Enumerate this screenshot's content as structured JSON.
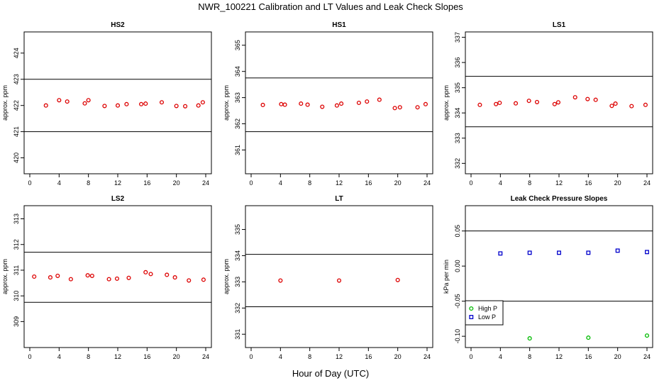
{
  "title": "NWR_100221  Calibration and LT Values and Leak Check Slopes",
  "xlabel": "Hour of Day (UTC)",
  "chart_data": [
    {
      "type": "scatter",
      "title": "HS2",
      "ylabel": "approx. ppm",
      "xlim": [
        0,
        24
      ],
      "xticks": [
        0,
        4,
        8,
        12,
        16,
        20,
        24
      ],
      "ylim": [
        419.5,
        424.7
      ],
      "yticks": [
        420,
        421,
        422,
        423,
        424
      ],
      "hlines": [
        423.0,
        421.0
      ],
      "color": "#dd0000",
      "x": [
        2.2,
        4.0,
        5.1,
        7.5,
        8.0,
        10.2,
        12.0,
        13.2,
        15.2,
        15.8,
        18.0,
        20.0,
        21.2,
        23.0,
        23.6
      ],
      "y": [
        422.0,
        422.2,
        422.15,
        422.08,
        422.2,
        421.98,
        422.0,
        422.05,
        422.05,
        422.07,
        422.12,
        421.98,
        421.97,
        422.0,
        422.12
      ]
    },
    {
      "type": "scatter",
      "title": "HS1",
      "ylabel": "approx. ppm",
      "xlim": [
        0,
        24
      ],
      "xticks": [
        0,
        4,
        8,
        12,
        16,
        20,
        24
      ],
      "ylim": [
        360.2,
        365.4
      ],
      "yticks": [
        361,
        362,
        363,
        364,
        365
      ],
      "hlines": [
        363.75,
        361.7
      ],
      "color": "#dd0000",
      "x": [
        1.6,
        4.1,
        4.6,
        6.8,
        7.7,
        9.7,
        11.7,
        12.3,
        14.7,
        15.8,
        17.5,
        19.6,
        20.3,
        22.7,
        23.8
      ],
      "y": [
        362.72,
        362.75,
        362.73,
        362.77,
        362.73,
        362.65,
        362.7,
        362.77,
        362.8,
        362.85,
        362.92,
        362.6,
        362.63,
        362.63,
        362.75
      ]
    },
    {
      "type": "scatter",
      "title": "LS1",
      "ylabel": "approx. ppm",
      "xlim": [
        0,
        24
      ],
      "xticks": [
        0,
        4,
        8,
        12,
        16,
        20,
        24
      ],
      "ylim": [
        331.7,
        337.1
      ],
      "yticks": [
        332,
        333,
        334,
        335,
        336,
        337
      ],
      "hlines": [
        335.45,
        333.45
      ],
      "color": "#dd0000",
      "x": [
        1.2,
        3.4,
        3.9,
        6.1,
        7.9,
        9.0,
        11.4,
        11.9,
        14.2,
        15.9,
        17.0,
        19.2,
        19.7,
        21.9,
        23.8
      ],
      "y": [
        334.32,
        334.35,
        334.4,
        334.38,
        334.48,
        334.43,
        334.35,
        334.42,
        334.62,
        334.55,
        334.52,
        334.28,
        334.37,
        334.27,
        334.32
      ]
    },
    {
      "type": "scatter",
      "title": "LS2",
      "ylabel": "approx. ppm",
      "xlim": [
        0,
        24
      ],
      "xticks": [
        0,
        4,
        8,
        12,
        16,
        20,
        24
      ],
      "ylim": [
        308.1,
        313.4
      ],
      "yticks": [
        309,
        310,
        311,
        312,
        313
      ],
      "hlines": [
        311.7,
        309.75
      ],
      "color": "#dd0000",
      "x": [
        0.6,
        2.8,
        3.8,
        5.6,
        7.9,
        8.5,
        10.8,
        11.9,
        13.5,
        15.8,
        16.5,
        18.7,
        19.8,
        21.7,
        23.7
      ],
      "y": [
        310.75,
        310.72,
        310.78,
        310.65,
        310.8,
        310.78,
        310.65,
        310.67,
        310.7,
        310.92,
        310.85,
        310.82,
        310.72,
        310.6,
        310.63
      ]
    },
    {
      "type": "scatter",
      "title": "LT",
      "ylabel": "approx. ppm",
      "xlim": [
        0,
        24
      ],
      "xticks": [
        0,
        4,
        8,
        12,
        16,
        20,
        24
      ],
      "ylim": [
        330.6,
        335.8
      ],
      "yticks": [
        331,
        332,
        333,
        334,
        335
      ],
      "hlines": [
        334.05,
        332.05
      ],
      "color": "#dd0000",
      "x": [
        4.0,
        12.0,
        20.0
      ],
      "y": [
        333.05,
        333.05,
        333.07
      ]
    },
    {
      "type": "scatter",
      "title": "Leak Check Pressure Slopes",
      "ylabel": "kPa per min",
      "xlim": [
        0,
        24
      ],
      "xticks": [
        0,
        4,
        8,
        12,
        16,
        20,
        24
      ],
      "ylim": [
        -0.112,
        0.082
      ],
      "yticks": [
        -0.1,
        -0.05,
        0.0,
        0.05
      ],
      "ytick_labels": [
        "-0.10",
        "-0.05",
        "0.00",
        "0.05"
      ],
      "hlines": [
        0.05,
        -0.05
      ],
      "legend": {
        "placement": "bottom-left",
        "entries": [
          "High P",
          "Low P"
        ]
      },
      "series": [
        {
          "name": "High P",
          "color": "#00bb00",
          "x": [
            8.0,
            16.0,
            24.0
          ],
          "y": [
            -0.103,
            -0.102,
            -0.099
          ]
        },
        {
          "name": "Low P",
          "color": "#0000cc",
          "x": [
            4.0,
            8.0,
            12.0,
            16.0,
            20.0,
            24.0
          ],
          "y": [
            0.018,
            0.019,
            0.019,
            0.019,
            0.022,
            0.02
          ]
        }
      ]
    }
  ]
}
